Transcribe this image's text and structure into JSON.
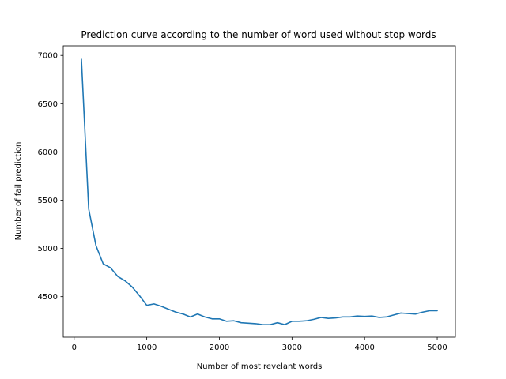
{
  "chart_data": {
    "type": "line",
    "title": "Prediction curve according to the number of word used without stop words",
    "xlabel": "Number of most revelant words",
    "ylabel": "Number of fail prediction",
    "xlim": [
      -150,
      5250
    ],
    "ylim": [
      4080,
      7100
    ],
    "xticks": [
      0,
      1000,
      2000,
      3000,
      4000,
      5000
    ],
    "yticks": [
      4500,
      5000,
      5500,
      6000,
      6500,
      7000
    ],
    "grid": false,
    "color": "#1f77b4",
    "series": [
      {
        "x": [
          100,
          200,
          300,
          400,
          500,
          600,
          700,
          800,
          900,
          1000,
          1100,
          1200,
          1300,
          1400,
          1500,
          1600,
          1700,
          1800,
          1900,
          2000,
          2100,
          2200,
          2300,
          2400,
          2500,
          2600,
          2700,
          2800,
          2900,
          3000,
          3100,
          3200,
          3300,
          3400,
          3500,
          3600,
          3700,
          3800,
          3900,
          4000,
          4100,
          4200,
          4300,
          4400,
          4500,
          4600,
          4700,
          4800,
          4900,
          5000
        ],
        "values": [
          6960,
          5410,
          5030,
          4840,
          4800,
          4710,
          4665,
          4600,
          4510,
          4410,
          4425,
          4400,
          4370,
          4340,
          4320,
          4290,
          4320,
          4290,
          4270,
          4270,
          4245,
          4250,
          4230,
          4225,
          4220,
          4210,
          4210,
          4230,
          4210,
          4245,
          4245,
          4250,
          4265,
          4285,
          4275,
          4280,
          4290,
          4290,
          4300,
          4295,
          4300,
          4285,
          4290,
          4310,
          4330,
          4325,
          4320,
          4340,
          4355,
          4355
        ]
      }
    ]
  }
}
